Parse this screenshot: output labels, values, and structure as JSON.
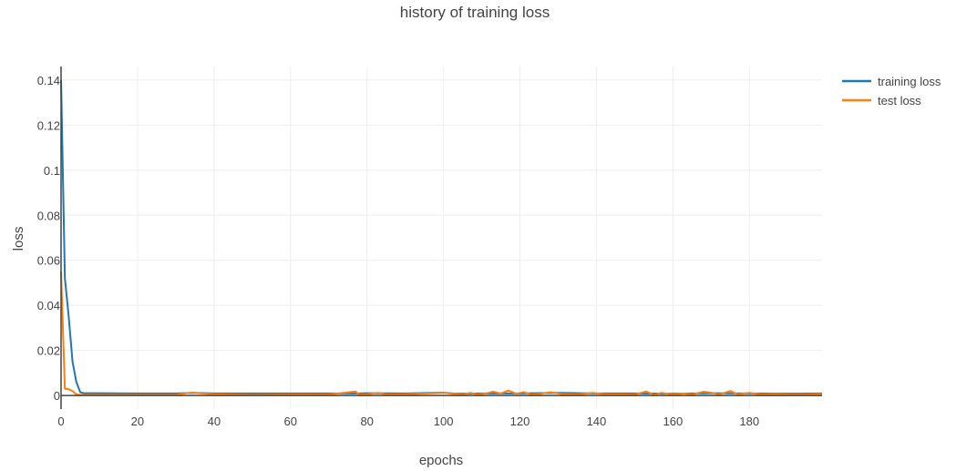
{
  "chart_data": {
    "type": "line",
    "title": "history of training loss",
    "xlabel": "epochs",
    "ylabel": "loss",
    "xlim": [
      0,
      199
    ],
    "ylim": [
      -0.006,
      0.146
    ],
    "x_ticks": [
      0,
      20,
      40,
      60,
      80,
      100,
      120,
      140,
      160,
      180
    ],
    "x_tick_labels": [
      "0",
      "20",
      "40",
      "60",
      "80",
      "100",
      "120",
      "140",
      "160",
      "180"
    ],
    "y_ticks": [
      0,
      0.02,
      0.04,
      0.06,
      0.08,
      0.1,
      0.12,
      0.14
    ],
    "y_tick_labels": [
      "0",
      "0.02",
      "0.04",
      "0.06",
      "0.08",
      "0.1",
      "0.12",
      "0.14"
    ],
    "grid": true,
    "legend_position": "top-right",
    "series": [
      {
        "name": "training loss",
        "color": "#1f77b4",
        "points": [
          [
            0,
            0.14
          ],
          [
            1,
            0.052
          ],
          [
            2,
            0.035
          ],
          [
            3,
            0.015
          ],
          [
            4,
            0.006
          ],
          [
            5,
            0.0015
          ],
          [
            6,
            0.001
          ],
          [
            10,
            0.001
          ],
          [
            20,
            0.0009
          ],
          [
            30,
            0.0009
          ],
          [
            35,
            0.0012
          ],
          [
            40,
            0.0009
          ],
          [
            60,
            0.0009
          ],
          [
            78,
            0.0009
          ],
          [
            80,
            0.001
          ],
          [
            90,
            0.0009
          ],
          [
            100,
            0.0013
          ],
          [
            103,
            0.0008
          ],
          [
            110,
            0.0009
          ],
          [
            120,
            0.0009
          ],
          [
            130,
            0.0012
          ],
          [
            140,
            0.0009
          ],
          [
            150,
            0.0009
          ],
          [
            160,
            0.0008
          ],
          [
            170,
            0.001
          ],
          [
            180,
            0.0009
          ],
          [
            190,
            0.0008
          ],
          [
            199,
            0.0009
          ]
        ]
      },
      {
        "name": "test loss",
        "color": "#ff7f0e",
        "points": [
          [
            0,
            0.055
          ],
          [
            1,
            0.003
          ],
          [
            2,
            0.0028
          ],
          [
            3,
            0.002
          ],
          [
            4,
            0.0005
          ],
          [
            5,
            0.0003
          ],
          [
            10,
            0.0003
          ],
          [
            20,
            0.0003
          ],
          [
            30,
            0.0003
          ],
          [
            34,
            0.0013
          ],
          [
            36,
            0.001
          ],
          [
            40,
            0.0005
          ],
          [
            50,
            0.0003
          ],
          [
            60,
            0.0004
          ],
          [
            70,
            0.0004
          ],
          [
            77,
            0.0018
          ],
          [
            78,
            0.0004
          ],
          [
            80,
            0.0005
          ],
          [
            83,
            0.0012
          ],
          [
            85,
            0.0004
          ],
          [
            90,
            0.0005
          ],
          [
            100,
            0.0012
          ],
          [
            102,
            0.0008
          ],
          [
            105,
            0.0003
          ],
          [
            107,
            0.0012
          ],
          [
            109,
            0.0004
          ],
          [
            111,
            0.0009
          ],
          [
            113,
            0.0017
          ],
          [
            115,
            0.0009
          ],
          [
            117,
            0.0022
          ],
          [
            119,
            0.0008
          ],
          [
            121,
            0.0015
          ],
          [
            123,
            0.0004
          ],
          [
            125,
            0.0006
          ],
          [
            128,
            0.0015
          ],
          [
            131,
            0.0006
          ],
          [
            135,
            0.0004
          ],
          [
            139,
            0.0012
          ],
          [
            142,
            0.0005
          ],
          [
            150,
            0.0004
          ],
          [
            153,
            0.0018
          ],
          [
            155,
            0.0003
          ],
          [
            157,
            0.0012
          ],
          [
            160,
            0.0004
          ],
          [
            163,
            0.0009
          ],
          [
            165,
            0.0004
          ],
          [
            168,
            0.0017
          ],
          [
            170,
            0.0013
          ],
          [
            172,
            0.0004
          ],
          [
            175,
            0.002
          ],
          [
            177,
            0.0005
          ],
          [
            180,
            0.0012
          ],
          [
            183,
            0.0004
          ],
          [
            186,
            0.0006
          ],
          [
            190,
            0.0004
          ],
          [
            195,
            0.0004
          ],
          [
            199,
            0.0006
          ]
        ]
      }
    ]
  }
}
